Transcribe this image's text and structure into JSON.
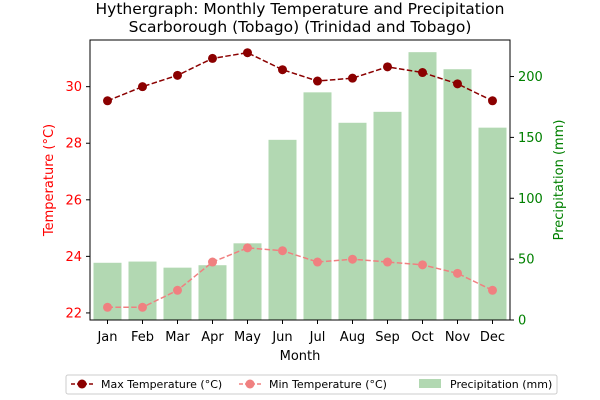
{
  "chart_data": {
    "type": "bar",
    "title": [
      "Hythergraph: Monthly Temperature and Precipitation",
      "Scarborough (Tobago) (Trinidad and Tobago)"
    ],
    "xlabel": "Month",
    "ylabel_left": "Temperature (°C)",
    "ylabel_right": "Precipitation (mm)",
    "categories": [
      "Jan",
      "Feb",
      "Mar",
      "Apr",
      "May",
      "Jun",
      "Jul",
      "Aug",
      "Sep",
      "Oct",
      "Nov",
      "Dec"
    ],
    "left_axis": {
      "ylim": [
        21.75,
        31.65
      ],
      "ticks": [
        22,
        24,
        26,
        28,
        30
      ],
      "color": "#ff0000"
    },
    "right_axis": {
      "ylim": [
        0,
        230
      ],
      "ticks": [
        0,
        50,
        100,
        150,
        200
      ],
      "color": "#008000"
    },
    "series": [
      {
        "name": "Max Temperature (°C)",
        "axis": "left",
        "kind": "line",
        "color": "#8b0000",
        "style": "dashed",
        "values": [
          29.5,
          30.0,
          30.4,
          31.0,
          31.2,
          30.6,
          30.2,
          30.3,
          30.7,
          30.5,
          30.1,
          29.5
        ]
      },
      {
        "name": "Min Temperature (°C)",
        "axis": "left",
        "kind": "line",
        "color": "#f08080",
        "style": "dashed",
        "values": [
          22.2,
          22.2,
          22.8,
          23.8,
          24.3,
          24.2,
          23.8,
          23.9,
          23.8,
          23.7,
          23.4,
          22.8
        ]
      },
      {
        "name": "Precipitation (mm)",
        "axis": "right",
        "kind": "bar",
        "color": "#b2d8b2",
        "values": [
          47,
          48,
          43,
          45,
          63,
          148,
          187,
          162,
          171,
          220,
          206,
          158
        ]
      }
    ],
    "legend_position": "bottom-center",
    "grid": false
  }
}
